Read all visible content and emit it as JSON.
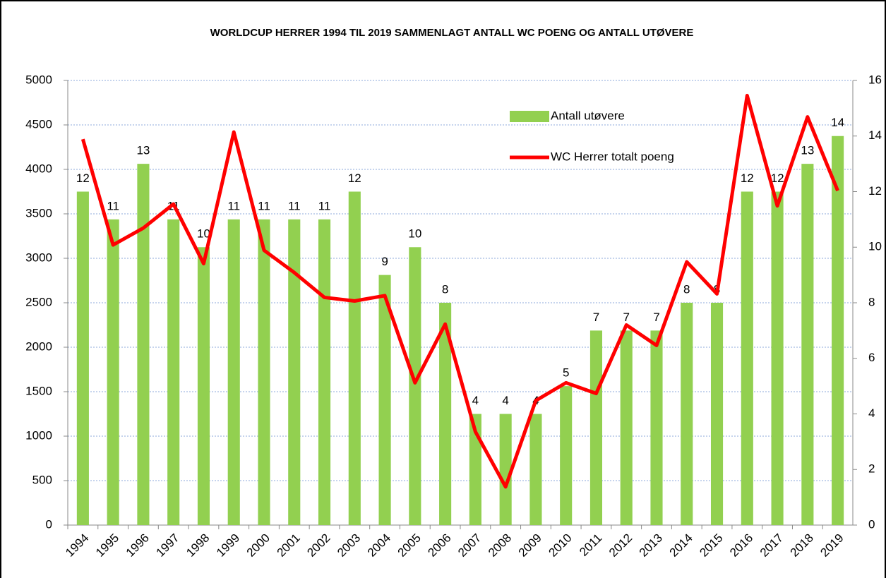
{
  "chart_data": {
    "type": "bar_line",
    "title": "WORLDCUP HERRER 1994 TIL 2019 SAMMENLAGT ANTALL WC POENG OG ANTALL UTØVERE",
    "categories": [
      "1994",
      "1995",
      "1996",
      "1997",
      "1998",
      "1999",
      "2000",
      "2001",
      "2002",
      "2003",
      "2004",
      "2005",
      "2006",
      "2007",
      "2008",
      "2009",
      "2010",
      "2011",
      "2012",
      "2013",
      "2014",
      "2015",
      "2016",
      "2017",
      "2018",
      "2019"
    ],
    "series": [
      {
        "name": "Antall utøvere",
        "type": "bar",
        "axis": "y2",
        "color": "#92d050",
        "values": [
          12,
          11,
          13,
          11,
          10,
          11,
          11,
          11,
          11,
          12,
          9,
          10,
          8,
          4,
          4,
          4,
          5,
          7,
          7,
          7,
          8,
          8,
          12,
          12,
          13,
          14
        ]
      },
      {
        "name": "WC Herrer totalt poeng",
        "type": "line",
        "axis": "y",
        "color": "#ff0000",
        "values": [
          4340,
          3150,
          3340,
          3610,
          2940,
          4420,
          3090,
          2840,
          2560,
          2520,
          2580,
          1600,
          2260,
          1050,
          430,
          1400,
          1600,
          1480,
          2250,
          2020,
          2960,
          2600,
          4830,
          3590,
          4590,
          3760
        ]
      }
    ],
    "ylim": [
      0,
      5000
    ],
    "yticks": [
      0,
      500,
      1000,
      1500,
      2000,
      2500,
      3000,
      3500,
      4000,
      4500,
      5000
    ],
    "y2lim": [
      0,
      16
    ],
    "y2ticks": [
      0,
      2,
      4,
      6,
      8,
      10,
      12,
      14,
      16
    ],
    "grid": true,
    "legend": "upper right"
  }
}
